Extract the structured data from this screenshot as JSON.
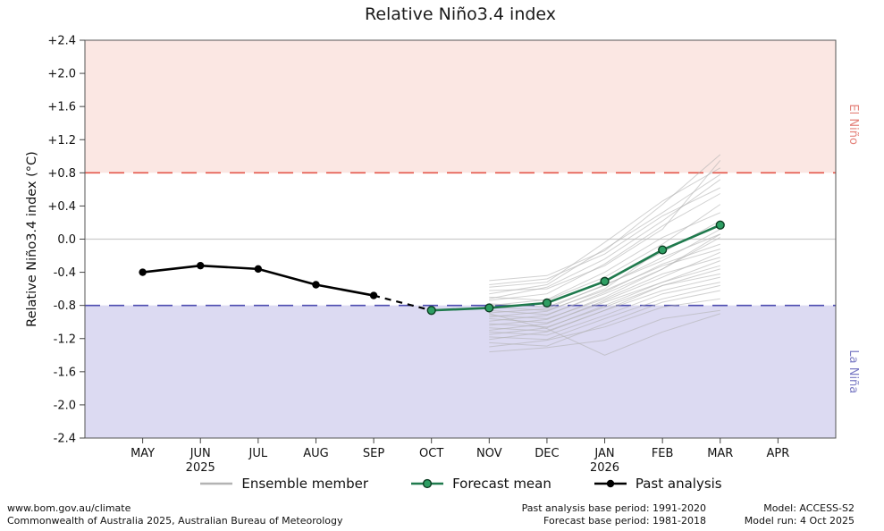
{
  "title": "Relative Niño3.4 index",
  "legend": {
    "items": [
      {
        "label": "Ensemble member"
      },
      {
        "label": "Forecast mean"
      },
      {
        "label": "Past analysis"
      }
    ]
  },
  "footer": {
    "site": "www.bom.gov.au/climate",
    "copyright": "Commonwealth of Australia 2025, Australian Bureau of Meteorology",
    "past_base": "Past analysis base period: 1991-2020",
    "forecast_base": "Forecast base period: 1981-2018",
    "model": "Model: ACCESS-S2",
    "model_run": "Model run: 4 Oct 2025"
  },
  "chart_data": {
    "type": "line",
    "title": "Relative Niño3.4 index",
    "xlabel": "",
    "ylabel": "Relative Niño3.4 index (°C)",
    "categories": [
      "MAY",
      "JUN",
      "JUL",
      "AUG",
      "SEP",
      "OCT",
      "NOV",
      "DEC",
      "JAN",
      "FEB",
      "MAR",
      "APR"
    ],
    "year_labels": [
      {
        "month": "JUN",
        "label": "2025"
      },
      {
        "month": "JAN",
        "label": "2026"
      }
    ],
    "ylim": [
      -2.4,
      2.4
    ],
    "ytick_step": 0.4,
    "ytick_labels": [
      "+2.4",
      "+2.0",
      "+1.6",
      "+1.2",
      "+0.8",
      "+0.4",
      "0.0",
      "-0.4",
      "-0.8",
      "-1.2",
      "-1.6",
      "-2.0",
      "-2.4"
    ],
    "grid": false,
    "legend_position": "bottom",
    "thresholds": {
      "el_nino": 0.8,
      "la_nina": -0.8,
      "zero": 0.0
    },
    "region_labels": {
      "el_nino": "El Niño",
      "la_nina": "La Niña"
    },
    "series": [
      {
        "name": "Past analysis",
        "x": [
          "MAY",
          "JUN",
          "JUL",
          "AUG",
          "SEP"
        ],
        "values": [
          -0.4,
          -0.32,
          -0.36,
          -0.55,
          -0.68
        ]
      },
      {
        "name": "Forecast mean",
        "x": [
          "OCT",
          "NOV",
          "DEC",
          "JAN",
          "FEB",
          "MAR"
        ],
        "values": [
          -0.86,
          -0.83,
          -0.77,
          -0.51,
          -0.13,
          0.17
        ]
      }
    ],
    "transition_segment": {
      "x": [
        "SEP",
        "OCT"
      ],
      "values": [
        -0.68,
        -0.86
      ],
      "style": "dashed"
    },
    "ensemble_x": [
      "NOV",
      "DEC",
      "JAN",
      "FEB",
      "MAR"
    ],
    "ensemble": [
      [
        -0.55,
        -0.48,
        -0.18,
        0.28,
        0.62
      ],
      [
        -0.62,
        -0.6,
        -0.32,
        0.12,
        0.95
      ],
      [
        -0.66,
        -0.55,
        -0.12,
        0.32,
        0.78
      ],
      [
        -0.7,
        -0.74,
        -0.46,
        -0.06,
        0.42
      ],
      [
        -0.74,
        -0.66,
        -0.3,
        0.16,
        0.55
      ],
      [
        -0.78,
        -0.82,
        -0.56,
        -0.22,
        0.06
      ],
      [
        -0.8,
        -0.73,
        -0.4,
        0.02,
        0.32
      ],
      [
        -0.82,
        -0.86,
        -0.62,
        -0.32,
        -0.12
      ],
      [
        -0.84,
        -0.77,
        -0.5,
        -0.16,
        0.22
      ],
      [
        -0.86,
        -0.91,
        -0.66,
        -0.36,
        0.02
      ],
      [
        -0.89,
        -0.84,
        -0.55,
        -0.26,
        0.12
      ],
      [
        -0.92,
        -0.96,
        -0.72,
        -0.42,
        -0.22
      ],
      [
        -0.94,
        -0.87,
        -0.6,
        -0.12,
        0.16
      ],
      [
        -0.96,
        -1.01,
        -0.76,
        -0.52,
        -0.32
      ],
      [
        -0.99,
        -0.92,
        -0.64,
        -0.3,
        -0.06
      ],
      [
        -1.02,
        -1.06,
        -0.82,
        -0.56,
        -0.42
      ],
      [
        -1.04,
        -0.97,
        -0.7,
        -0.36,
        0.06
      ],
      [
        -1.07,
        -1.11,
        -0.86,
        -0.62,
        -0.46
      ],
      [
        -1.1,
        -1.02,
        -0.74,
        -0.46,
        -0.16
      ],
      [
        -1.12,
        -1.16,
        -0.92,
        -0.66,
        -0.52
      ],
      [
        -1.15,
        -1.07,
        -0.8,
        -0.52,
        -0.26
      ],
      [
        -1.18,
        -1.21,
        -0.96,
        -0.72,
        -0.56
      ],
      [
        -1.21,
        -1.12,
        -0.86,
        -0.56,
        -0.36
      ],
      [
        -1.25,
        -1.29,
        -1.02,
        -0.76,
        -0.62
      ],
      [
        -1.3,
        -1.22,
        -1.06,
        -0.82,
        -0.72
      ],
      [
        -1.36,
        -1.31,
        -1.22,
        -0.96,
        -0.86
      ],
      [
        -0.5,
        -0.44,
        -0.14,
        0.42,
        1.02
      ],
      [
        -0.58,
        -0.52,
        -0.04,
        0.46,
        0.86
      ],
      [
        -0.72,
        -0.58,
        -0.24,
        0.22,
        0.72
      ],
      [
        -0.9,
        -1.08,
        -1.4,
        -1.12,
        -0.9
      ]
    ],
    "colors": {
      "el_nino_region": "#fbe7e3",
      "la_nina_region": "#dcdaf2",
      "el_nino_line": "#e4564a",
      "la_nina_line": "#4c4cb0",
      "el_nino_label": "#e4837b",
      "la_nina_label": "#7b7bc4",
      "zero_line": "#cccccc",
      "axis": "#444444",
      "ensemble": "#b3b3b3",
      "forecast_line": "#1f7a4d",
      "forecast_marker_fill": "#2e9e63",
      "forecast_marker_edge": "#0c3d22",
      "past": "#000000"
    }
  }
}
